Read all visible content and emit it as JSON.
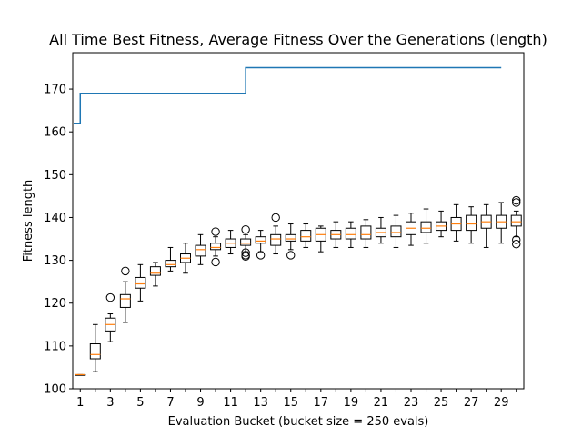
{
  "chart_data": {
    "type": "box",
    "title": "All Time Best Fitness, Average Fitness Over the Generations (length)",
    "xlabel": "Evaluation Bucket (bucket size = 250 evals)",
    "ylabel": "Fitness length",
    "ylim": [
      100,
      178.5
    ],
    "xlim": [
      0.5,
      30.5
    ],
    "yticks": [
      100,
      110,
      120,
      130,
      140,
      150,
      160,
      170
    ],
    "xticks": [
      1,
      3,
      5,
      7,
      9,
      11,
      13,
      15,
      17,
      19,
      21,
      23,
      25,
      27,
      29
    ],
    "grid": false,
    "colors": {
      "box": "#000000",
      "median": "#ff7f0e",
      "best_line": "#1f77b4"
    },
    "best_fitness_step": {
      "name": "",
      "x": [
        0.5,
        1,
        12,
        29
      ],
      "y": [
        162,
        169,
        175,
        175
      ]
    },
    "boxes": [
      {
        "x": 1,
        "wlo": 103.3,
        "q1": 103.3,
        "med": 103.3,
        "q3": 103.3,
        "whi": 103.3,
        "fliers": []
      },
      {
        "x": 2,
        "wlo": 104,
        "q1": 107,
        "med": 108,
        "q3": 110.5,
        "whi": 115,
        "fliers": []
      },
      {
        "x": 3,
        "wlo": 111,
        "q1": 113.5,
        "med": 115,
        "q3": 116.5,
        "whi": 117.5,
        "fliers": [
          121.3
        ]
      },
      {
        "x": 4,
        "wlo": 115.5,
        "q1": 119,
        "med": 121,
        "q3": 122,
        "whi": 125,
        "fliers": [
          127.5
        ]
      },
      {
        "x": 5,
        "wlo": 120.5,
        "q1": 123.5,
        "med": 124.5,
        "q3": 126,
        "whi": 129,
        "fliers": []
      },
      {
        "x": 6,
        "wlo": 124,
        "q1": 126.5,
        "med": 127,
        "q3": 128.5,
        "whi": 129.5,
        "fliers": []
      },
      {
        "x": 7,
        "wlo": 127.5,
        "q1": 128.5,
        "med": 129,
        "q3": 130,
        "whi": 133,
        "fliers": []
      },
      {
        "x": 8,
        "wlo": 127,
        "q1": 129.5,
        "med": 130.5,
        "q3": 131.5,
        "whi": 134,
        "fliers": []
      },
      {
        "x": 9,
        "wlo": 129,
        "q1": 131,
        "med": 132.5,
        "q3": 133.5,
        "whi": 136,
        "fliers": []
      },
      {
        "x": 10,
        "wlo": 131,
        "q1": 132.5,
        "med": 133,
        "q3": 134,
        "whi": 135.5,
        "fliers": [
          136.7,
          129.6
        ]
      },
      {
        "x": 11,
        "wlo": 131.5,
        "q1": 133,
        "med": 134,
        "q3": 135,
        "whi": 137,
        "fliers": []
      },
      {
        "x": 12,
        "wlo": 132,
        "q1": 133.5,
        "med": 134,
        "q3": 135,
        "whi": 136,
        "fliers": [
          137.2,
          131.8,
          131.2,
          130.9
        ]
      },
      {
        "x": 13,
        "wlo": 132,
        "q1": 134,
        "med": 134.5,
        "q3": 135.5,
        "whi": 137,
        "fliers": [
          131.2
        ]
      },
      {
        "x": 14,
        "wlo": 131.5,
        "q1": 133.5,
        "med": 135,
        "q3": 136,
        "whi": 138,
        "fliers": [
          140
        ]
      },
      {
        "x": 15,
        "wlo": 132.5,
        "q1": 134.5,
        "med": 135,
        "q3": 136,
        "whi": 138.5,
        "fliers": [
          131.2
        ]
      },
      {
        "x": 16,
        "wlo": 133,
        "q1": 134.5,
        "med": 135.5,
        "q3": 137,
        "whi": 138.5,
        "fliers": []
      },
      {
        "x": 17,
        "wlo": 132,
        "q1": 134.5,
        "med": 136,
        "q3": 137.5,
        "whi": 138,
        "fliers": []
      },
      {
        "x": 18,
        "wlo": 133,
        "q1": 135,
        "med": 136,
        "q3": 137,
        "whi": 139,
        "fliers": []
      },
      {
        "x": 19,
        "wlo": 133,
        "q1": 135,
        "med": 136,
        "q3": 137.5,
        "whi": 139,
        "fliers": []
      },
      {
        "x": 20,
        "wlo": 133,
        "q1": 135,
        "med": 136,
        "q3": 138,
        "whi": 139.5,
        "fliers": []
      },
      {
        "x": 21,
        "wlo": 134,
        "q1": 135.5,
        "med": 136.5,
        "q3": 137.5,
        "whi": 140,
        "fliers": []
      },
      {
        "x": 22,
        "wlo": 133,
        "q1": 135.5,
        "med": 136.5,
        "q3": 138,
        "whi": 140.5,
        "fliers": []
      },
      {
        "x": 23,
        "wlo": 133.5,
        "q1": 136,
        "med": 137.5,
        "q3": 139,
        "whi": 141,
        "fliers": []
      },
      {
        "x": 24,
        "wlo": 134,
        "q1": 136.5,
        "med": 137.5,
        "q3": 139,
        "whi": 142,
        "fliers": []
      },
      {
        "x": 25,
        "wlo": 135.5,
        "q1": 137,
        "med": 138,
        "q3": 139,
        "whi": 141.5,
        "fliers": []
      },
      {
        "x": 26,
        "wlo": 134.5,
        "q1": 137,
        "med": 138.5,
        "q3": 140,
        "whi": 143,
        "fliers": []
      },
      {
        "x": 27,
        "wlo": 134,
        "q1": 137,
        "med": 138.5,
        "q3": 140.5,
        "whi": 142.5,
        "fliers": []
      },
      {
        "x": 28,
        "wlo": 133,
        "q1": 137.5,
        "med": 139,
        "q3": 140.5,
        "whi": 143,
        "fliers": []
      },
      {
        "x": 29,
        "wlo": 134,
        "q1": 137.5,
        "med": 139,
        "q3": 140.5,
        "whi": 143.5,
        "fliers": []
      },
      {
        "x": 30,
        "wlo": 135.5,
        "q1": 138,
        "med": 139,
        "q3": 140.5,
        "whi": 141.5,
        "fliers": [
          144,
          143.5,
          134.8,
          133.8
        ]
      }
    ]
  }
}
